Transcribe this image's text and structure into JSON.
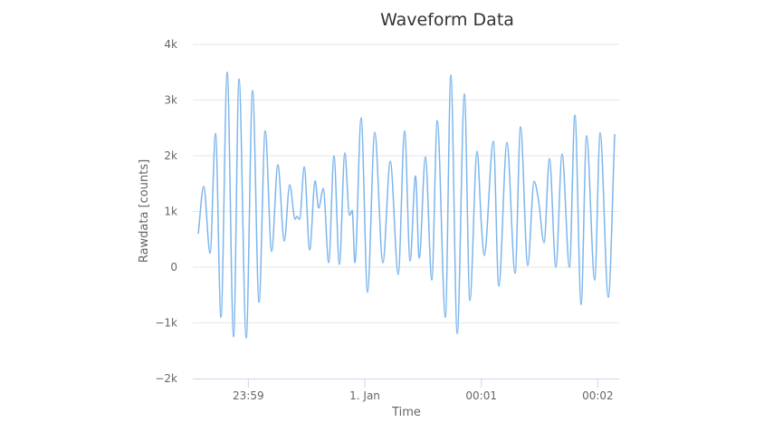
{
  "chart_data": {
    "type": "line",
    "title": "Waveform Data",
    "xlabel": "Time",
    "ylabel": "Rawdata [counts]",
    "x_unit": "seconds relative to 1. Jan 00:00:00",
    "xlim": [
      -88.6,
      131
    ],
    "ylim": [
      -2000,
      4000
    ],
    "grid": true,
    "legend": "none",
    "color": "#7cb5ec",
    "y_ticks": [
      {
        "value": 4000,
        "label": "4k"
      },
      {
        "value": 3000,
        "label": "3k"
      },
      {
        "value": 2000,
        "label": "2k"
      },
      {
        "value": 1000,
        "label": "1k"
      },
      {
        "value": 0,
        "label": "0"
      },
      {
        "value": -1000,
        "label": "−1k"
      },
      {
        "value": -2000,
        "label": "−2k"
      }
    ],
    "x_ticks": [
      {
        "value": -60,
        "label": "23:59"
      },
      {
        "value": 0,
        "label": "1. Jan"
      },
      {
        "value": 60,
        "label": "00:01"
      },
      {
        "value": 120,
        "label": "00:02"
      }
    ],
    "series": [
      {
        "name": "Rawdata",
        "x": [
          -85.8,
          -83.0,
          -79.7,
          -76.9,
          -74.1,
          -70.9,
          -67.6,
          -64.8,
          -61.1,
          -57.8,
          -54.5,
          -51.3,
          -48.0,
          -44.8,
          -41.5,
          -38.7,
          -35.9,
          -35.0,
          -33.6,
          -31.2,
          -28.4,
          -25.6,
          -23.8,
          -21.4,
          -18.6,
          -15.9,
          -13.1,
          -10.3,
          -7.9,
          -6.5,
          -5.1,
          -1.9,
          1.4,
          5.1,
          9.3,
          13.1,
          17.2,
          20.5,
          23.3,
          26.1,
          28.0,
          31.2,
          34.5,
          37.3,
          41.5,
          44.3,
          47.6,
          51.3,
          54.1,
          57.8,
          60.1,
          61.5,
          66.2,
          69.0,
          73.2,
          77.4,
          80.2,
          83.9,
          87.2,
          89.5,
          92.3,
          95.1,
          98.4,
          101.6,
          105.4,
          108.2,
          111.4,
          114.2,
          118.4,
          121.2,
          125.4,
          128.7
        ],
        "values": [
          600,
          1450,
          250,
          2400,
          -900,
          3500,
          -1250,
          3380,
          -1270,
          3170,
          -630,
          2450,
          280,
          1840,
          470,
          1480,
          860,
          910,
          860,
          1800,
          310,
          1550,
          1060,
          1410,
          80,
          2000,
          50,
          2050,
          930,
          1020,
          80,
          2680,
          -450,
          2420,
          80,
          1900,
          -130,
          2450,
          110,
          1640,
          160,
          1980,
          -230,
          2630,
          -900,
          3450,
          -1190,
          3110,
          -600,
          2080,
          730,
          210,
          2260,
          -340,
          2240,
          -110,
          2520,
          30,
          1540,
          1190,
          440,
          1950,
          0,
          2030,
          0,
          2730,
          -670,
          2360,
          -230,
          2410,
          -540,
          2390
        ]
      }
    ]
  }
}
